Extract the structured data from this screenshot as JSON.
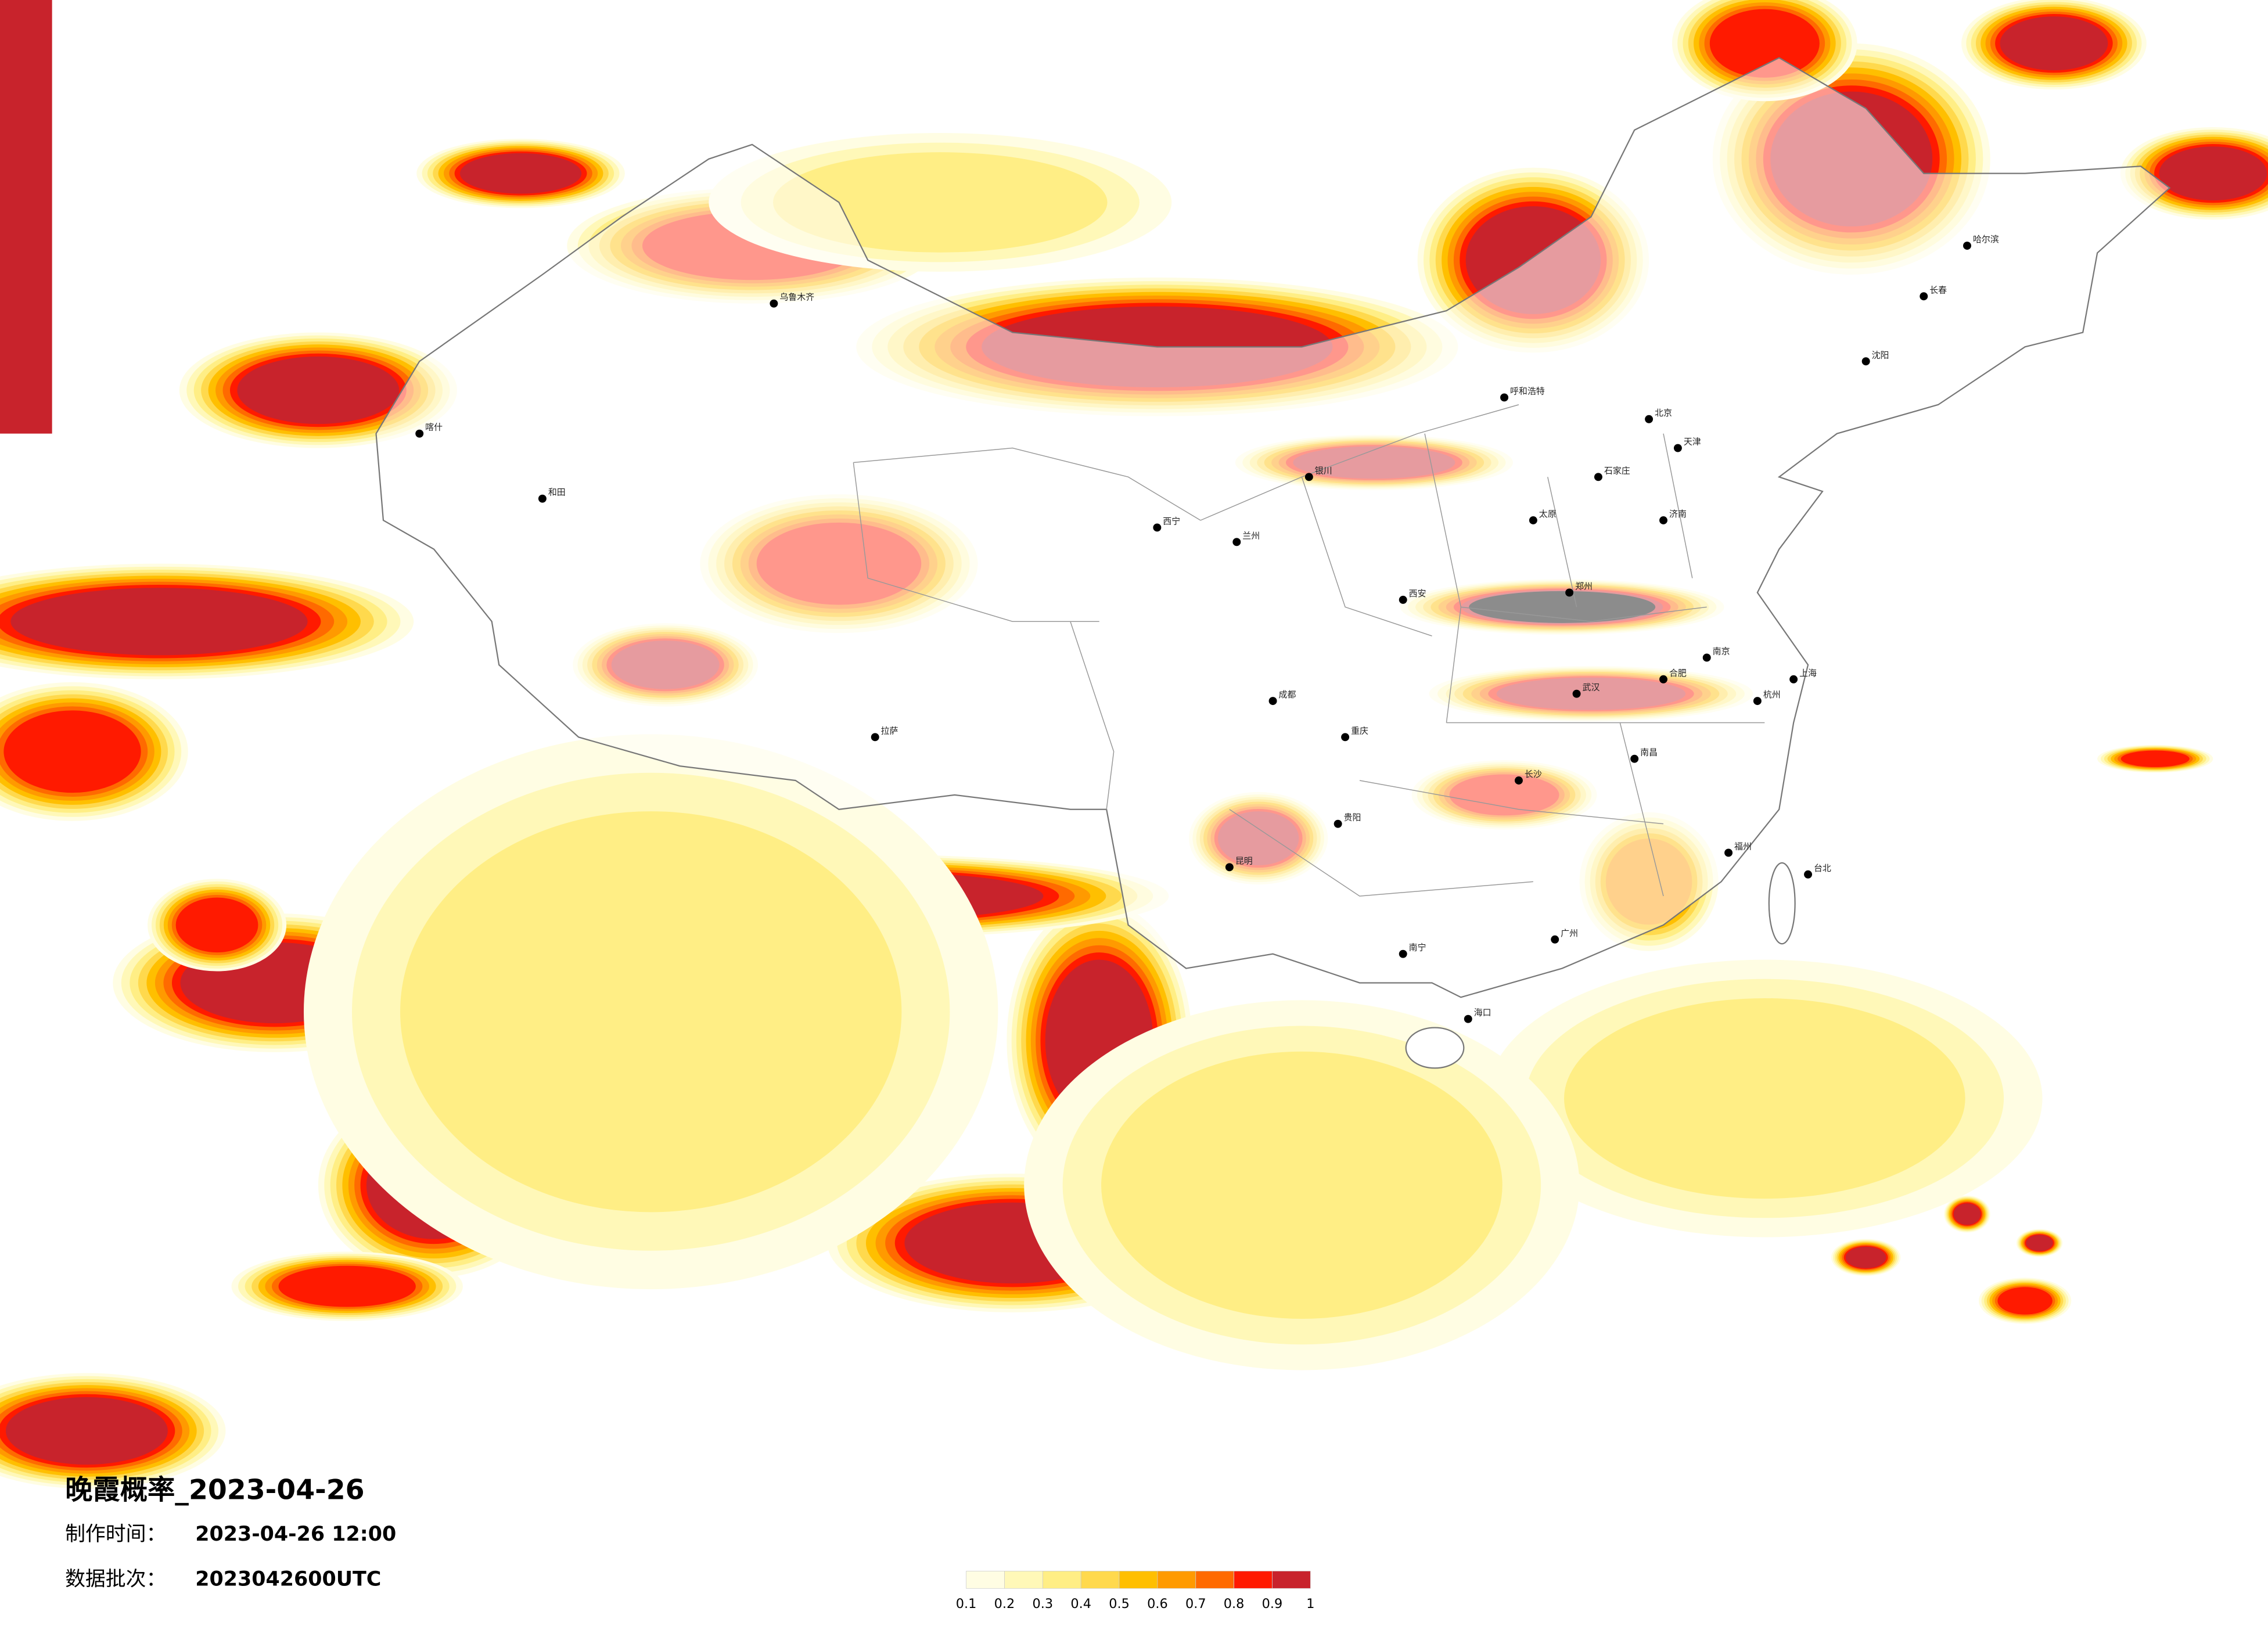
{
  "header": {
    "title": "晚霞概率_2023-04-26",
    "made_label": "制作时间：",
    "made_time": "2023-04-26 12:00",
    "batch_label": "数据批次：",
    "batch": "2023042600UTC"
  },
  "legend": {
    "colors": [
      "#fffde3",
      "#fff8b8",
      "#ffee85",
      "#ffd94d",
      "#ffbf00",
      "#ff9a00",
      "#ff6a00",
      "#ff1a00",
      "#c8232c"
    ],
    "ticks": [
      0.1,
      0.2,
      0.3,
      0.4,
      0.5,
      0.6,
      0.7,
      0.8,
      0.9,
      1
    ]
  },
  "cities": [
    "北京",
    "天津",
    "石家庄",
    "太原",
    "呼和浩特",
    "济南",
    "郑州",
    "西安",
    "兰州",
    "西宁",
    "银川",
    "乌鲁木齐",
    "拉萨",
    "成都",
    "重庆",
    "贵阳",
    "昆明",
    "南宁",
    "广州",
    "长沙",
    "武汉",
    "南昌",
    "福州",
    "杭州",
    "上海",
    "南京",
    "合肥",
    "哈尔滨",
    "长春",
    "沈阳",
    "海口",
    "台北",
    "和田",
    "喀什"
  ]
}
